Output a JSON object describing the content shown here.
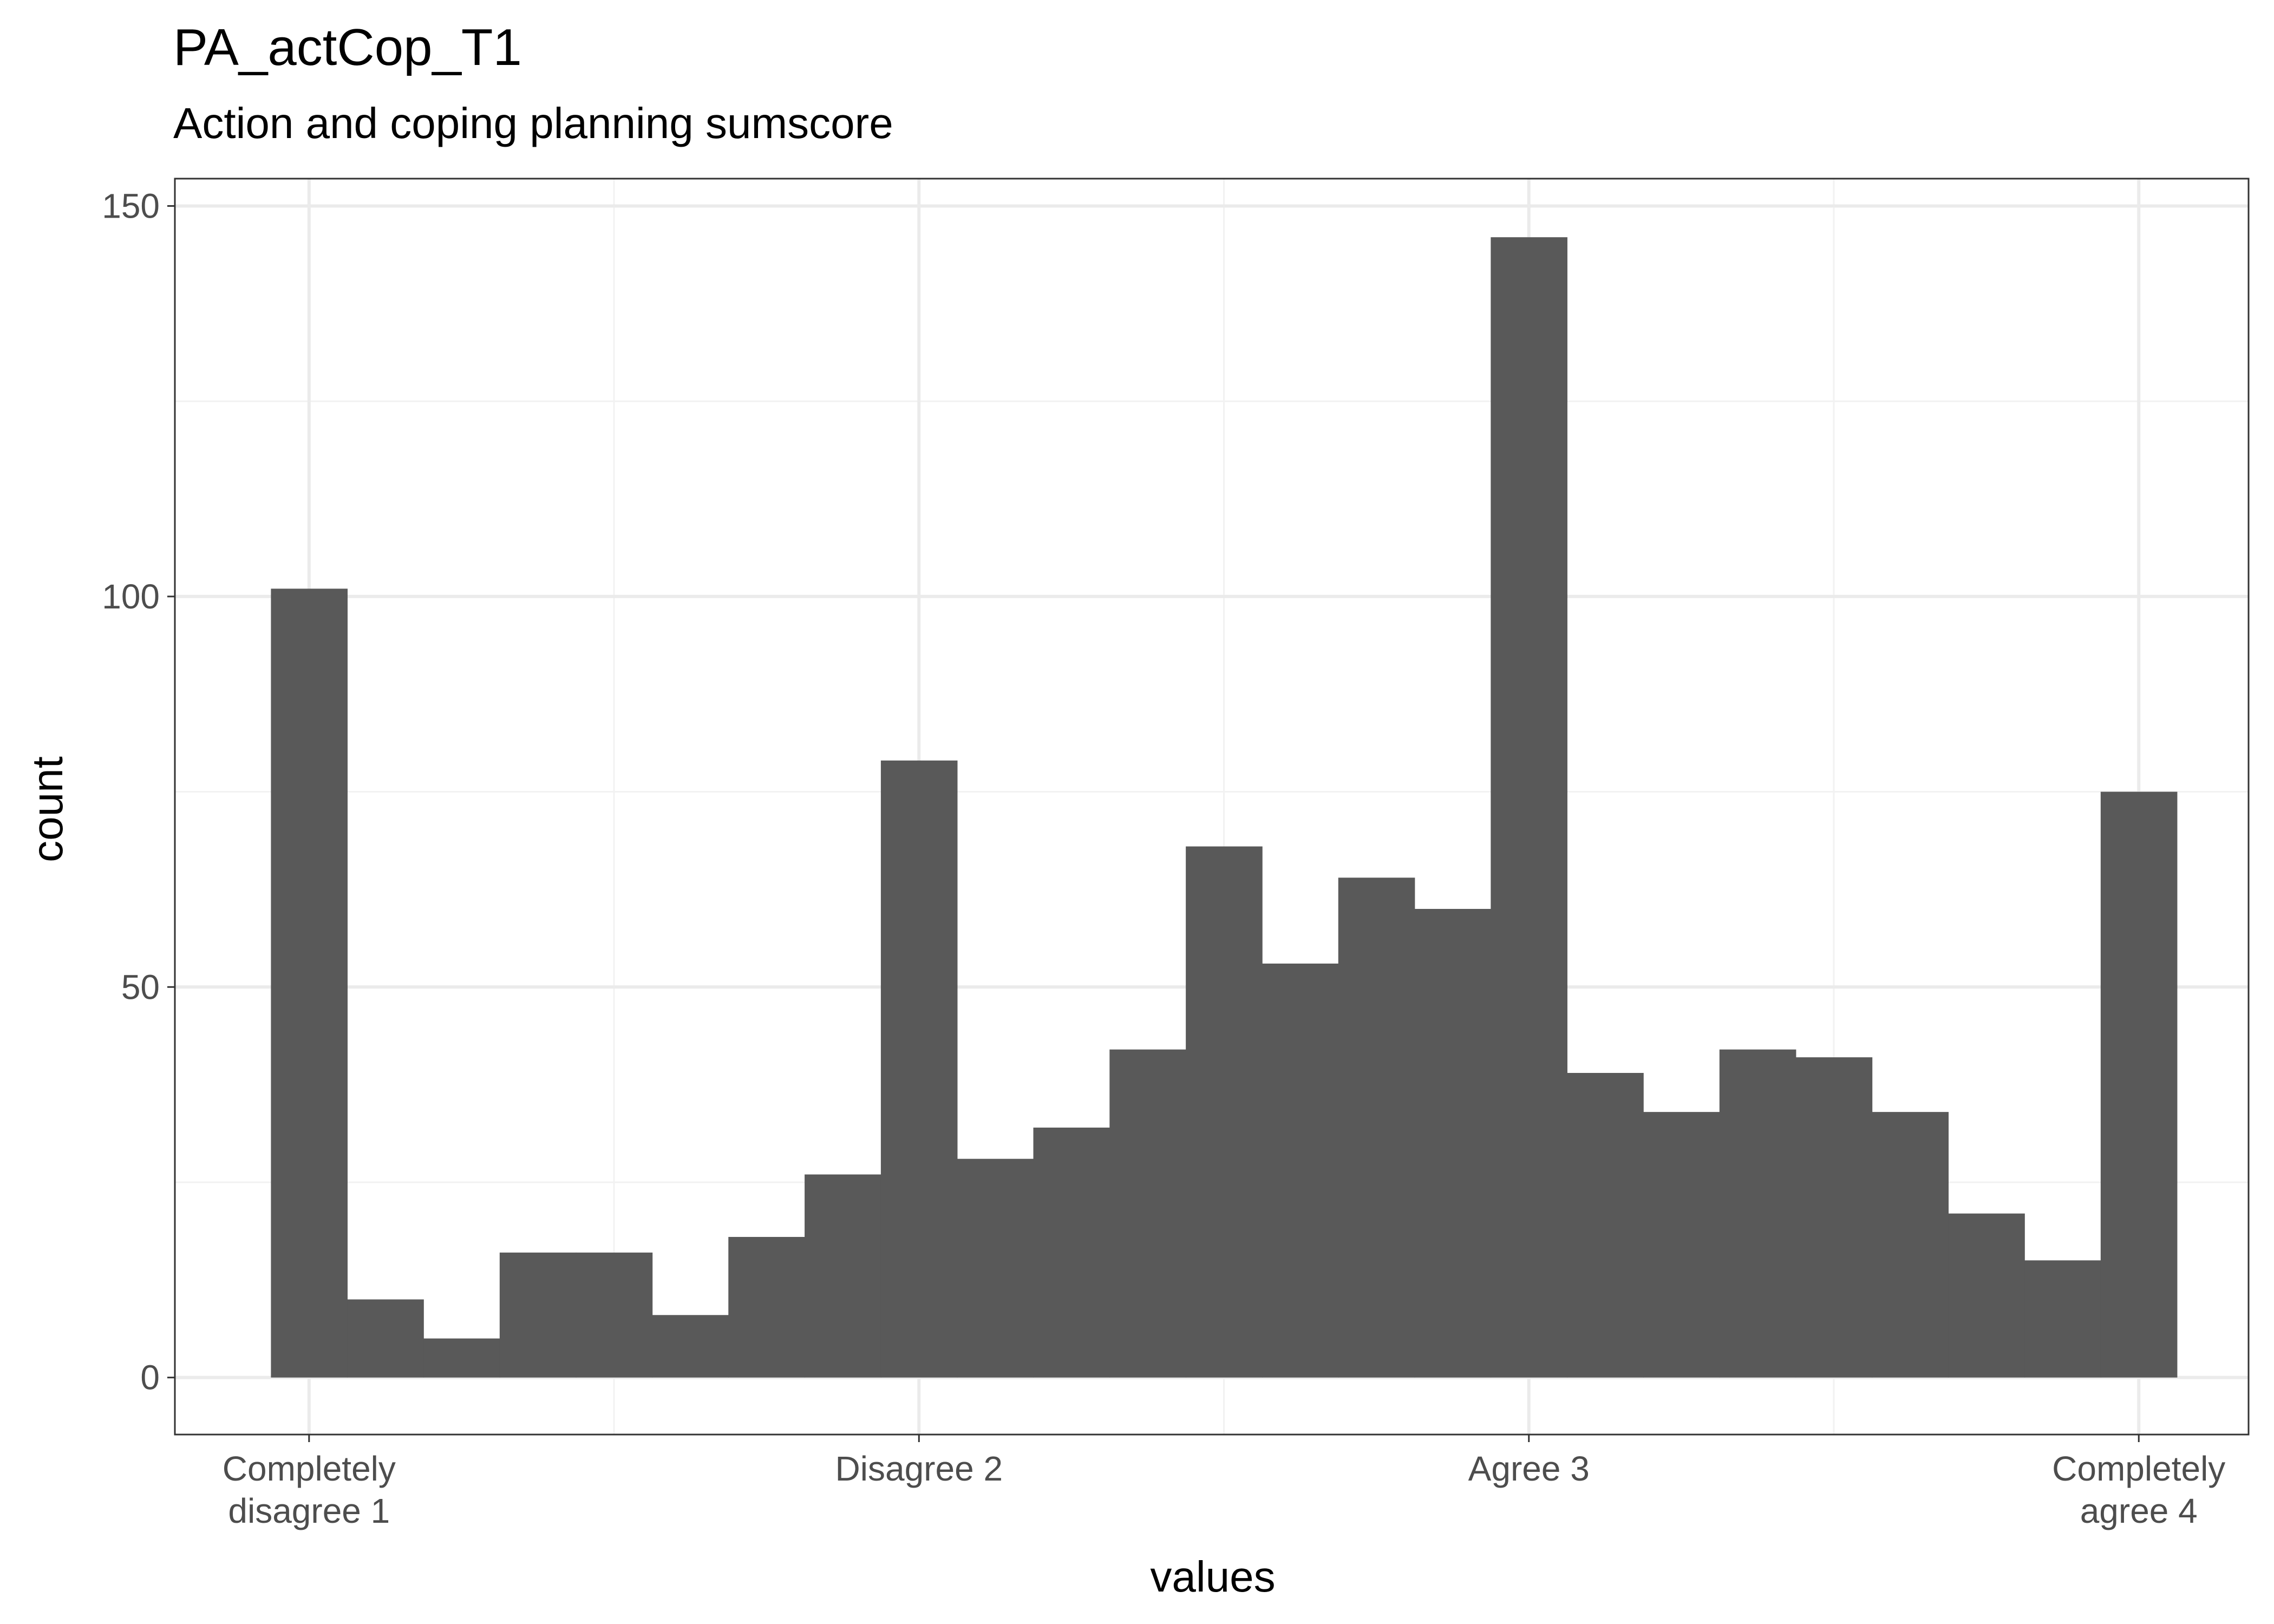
{
  "chart_data": {
    "type": "bar",
    "title": "PA_actCop_T1",
    "subtitle": "Action and coping planning sumscore",
    "xlabel": "values",
    "ylabel": "count",
    "xlim": [
      0.78,
      4.18
    ],
    "ylim": [
      -7.3,
      153.5
    ],
    "yticks": [
      0,
      50,
      100,
      150
    ],
    "xticks": [
      {
        "value": 1,
        "lines": [
          "Completely",
          "disagree 1"
        ]
      },
      {
        "value": 2,
        "lines": [
          "Disagree 2"
        ]
      },
      {
        "value": 3,
        "lines": [
          "Agree 3"
        ]
      },
      {
        "value": 4,
        "lines": [
          "Completely",
          "agree 4"
        ]
      }
    ],
    "bin_start": 0.9375,
    "bin_width": 0.125,
    "values": [
      101,
      10,
      5,
      16,
      16,
      8,
      18,
      26,
      79,
      28,
      32,
      42,
      68,
      53,
      64,
      60,
      146,
      39,
      34,
      42,
      41,
      34,
      21,
      15,
      75
    ],
    "grid": true,
    "colors": {
      "bar": "#595959",
      "grid_major": "#ebebeb",
      "grid_minor": "#f2f2f2",
      "panel_border": "#333333",
      "tick_text": "#4d4d4d"
    }
  }
}
